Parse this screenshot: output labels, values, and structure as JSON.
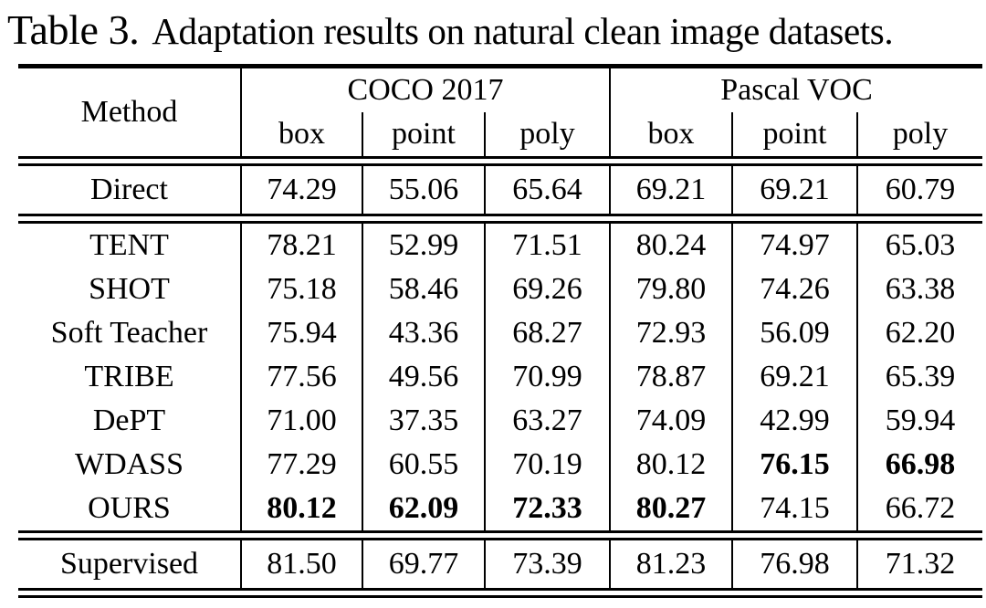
{
  "caption": {
    "label": "Table 3.",
    "text": "Adaptation results on natural clean image datasets."
  },
  "table": {
    "method_header": "Method",
    "groups": [
      {
        "label": "COCO 2017",
        "sub": [
          "box",
          "point",
          "poly"
        ]
      },
      {
        "label": "Pascal VOC",
        "sub": [
          "box",
          "point",
          "poly"
        ]
      }
    ],
    "sections": [
      {
        "rows": [
          {
            "method": "Direct",
            "values": [
              "74.29",
              "55.06",
              "65.64",
              "69.21",
              "69.21",
              "60.79"
            ],
            "bold": [
              false,
              false,
              false,
              false,
              false,
              false
            ]
          }
        ]
      },
      {
        "rows": [
          {
            "method": "TENT",
            "values": [
              "78.21",
              "52.99",
              "71.51",
              "80.24",
              "74.97",
              "65.03"
            ],
            "bold": [
              false,
              false,
              false,
              false,
              false,
              false
            ]
          },
          {
            "method": "SHOT",
            "values": [
              "75.18",
              "58.46",
              "69.26",
              "79.80",
              "74.26",
              "63.38"
            ],
            "bold": [
              false,
              false,
              false,
              false,
              false,
              false
            ]
          },
          {
            "method": "Soft Teacher",
            "values": [
              "75.94",
              "43.36",
              "68.27",
              "72.93",
              "56.09",
              "62.20"
            ],
            "bold": [
              false,
              false,
              false,
              false,
              false,
              false
            ]
          },
          {
            "method": "TRIBE",
            "values": [
              "77.56",
              "49.56",
              "70.99",
              "78.87",
              "69.21",
              "65.39"
            ],
            "bold": [
              false,
              false,
              false,
              false,
              false,
              false
            ]
          },
          {
            "method": "DePT",
            "values": [
              "71.00",
              "37.35",
              "63.27",
              "74.09",
              "42.99",
              "59.94"
            ],
            "bold": [
              false,
              false,
              false,
              false,
              false,
              false
            ]
          },
          {
            "method": "WDASS",
            "values": [
              "77.29",
              "60.55",
              "70.19",
              "80.12",
              "76.15",
              "66.98"
            ],
            "bold": [
              false,
              false,
              false,
              false,
              true,
              true
            ]
          },
          {
            "method": "OURS",
            "values": [
              "80.12",
              "62.09",
              "72.33",
              "80.27",
              "74.15",
              "66.72"
            ],
            "bold": [
              true,
              true,
              true,
              true,
              false,
              false
            ]
          }
        ]
      },
      {
        "rows": [
          {
            "method": "Supervised",
            "values": [
              "81.50",
              "69.77",
              "73.39",
              "81.23",
              "76.98",
              "71.32"
            ],
            "bold": [
              false,
              false,
              false,
              false,
              false,
              false
            ]
          }
        ]
      }
    ]
  }
}
